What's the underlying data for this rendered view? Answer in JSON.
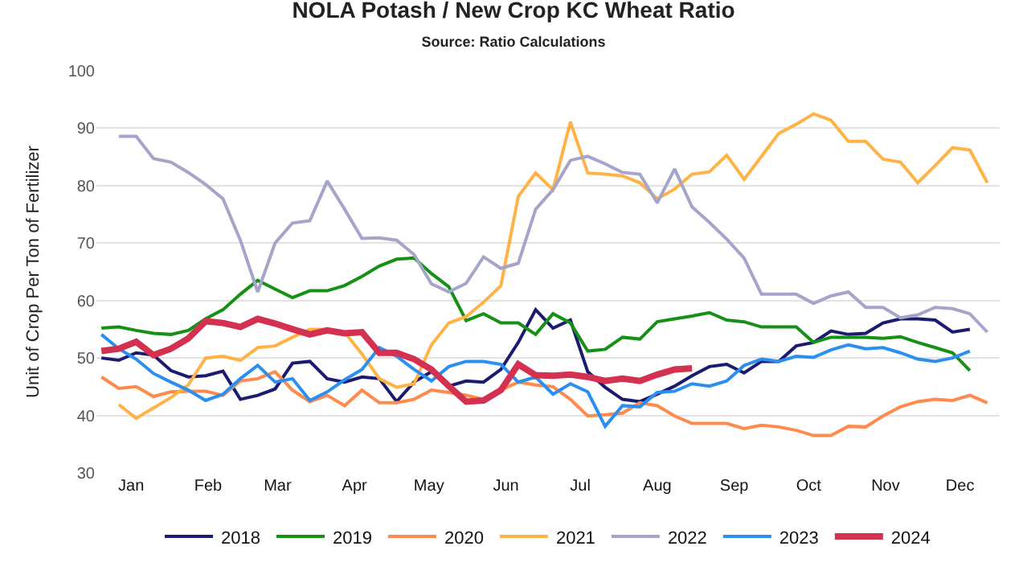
{
  "chart_data": {
    "type": "line",
    "title": "NOLA Potash / New Crop KC Wheat Ratio",
    "subtitle": "Source: Ratio Calculations",
    "ylabel": "Unit of Crop Per Ton of Fertilizer",
    "x": [
      "--01-03",
      "--01-10",
      "--01-17",
      "--01-24",
      "--01-31",
      "--02-07",
      "--02-14",
      "--02-21",
      "--02-28",
      "--03-07",
      "--03-14",
      "--03-21",
      "--03-28",
      "--04-04",
      "--04-11",
      "--04-18",
      "--04-25",
      "--05-02",
      "--05-09",
      "--05-16",
      "--05-23",
      "--05-30",
      "--06-06",
      "--06-13",
      "--06-20",
      "--06-27",
      "--07-04",
      "--07-11",
      "--07-18",
      "--07-25",
      "--08-01",
      "--08-08",
      "--08-15",
      "--08-22",
      "--08-29",
      "--09-05",
      "--09-12",
      "--09-19",
      "--09-26",
      "--10-03",
      "--10-10",
      "--10-17",
      "--10-24",
      "--10-31",
      "--11-07",
      "--11-14",
      "--11-21",
      "--11-28",
      "--12-05",
      "--12-12",
      "--12-19",
      "--12-26"
    ],
    "xlim": [
      "--01-01",
      "--12-31"
    ],
    "xticks": [
      {
        "value": "--01-15",
        "label": "Jan"
      },
      {
        "value": "--02-15",
        "label": "Feb"
      },
      {
        "value": "--03-15",
        "label": "Mar"
      },
      {
        "value": "--04-15",
        "label": "Apr"
      },
      {
        "value": "--05-15",
        "label": "May"
      },
      {
        "value": "--06-15",
        "label": "Jun"
      },
      {
        "value": "--07-15",
        "label": "Jul"
      },
      {
        "value": "--08-15",
        "label": "Aug"
      },
      {
        "value": "--09-15",
        "label": "Sep"
      },
      {
        "value": "--10-15",
        "label": "Oct"
      },
      {
        "value": "--11-15",
        "label": "Nov"
      },
      {
        "value": "--12-15",
        "label": "Dec"
      }
    ],
    "ylim": [
      30,
      100
    ],
    "yticks": [
      30,
      40,
      50,
      60,
      70,
      80,
      90,
      100
    ],
    "grid": "y",
    "legend": "bottom",
    "marker": "none",
    "line_style": "solid",
    "series": [
      {
        "name": "2018",
        "color": "#1b1b6f",
        "values": [
          50.0,
          49.6,
          50.9,
          50.5,
          47.8,
          46.7,
          46.9,
          47.7,
          42.8,
          43.5,
          44.6,
          49.1,
          49.4,
          46.4,
          45.8,
          46.7,
          46.4,
          42.4,
          45.8,
          47.6,
          45.1,
          46.0,
          45.8,
          48.0,
          52.7,
          58.4,
          55.2,
          56.6,
          47.6,
          44.9,
          42.8,
          42.4,
          43.7,
          45.1,
          46.9,
          48.5,
          48.9,
          47.4,
          49.4,
          49.4,
          52.1,
          52.7,
          54.7,
          54.1,
          54.3,
          56.1,
          56.8,
          56.8,
          56.6,
          54.5,
          55.0,
          null
        ]
      },
      {
        "name": "2019",
        "color": "#169116",
        "values": [
          55.2,
          55.4,
          54.8,
          54.3,
          54.1,
          54.8,
          56.8,
          58.4,
          61.1,
          63.5,
          62.0,
          60.5,
          61.7,
          61.7,
          62.6,
          64.2,
          66.0,
          67.2,
          67.4,
          64.7,
          62.4,
          56.5,
          57.7,
          56.1,
          56.1,
          54.1,
          57.7,
          56.1,
          51.2,
          51.5,
          53.6,
          53.3,
          56.3,
          56.8,
          57.3,
          57.9,
          56.6,
          56.3,
          55.4,
          55.4,
          55.4,
          52.7,
          53.6,
          53.6,
          53.6,
          53.4,
          53.7,
          52.7,
          51.8,
          50.9,
          47.8,
          null
        ]
      },
      {
        "name": "2020",
        "color": "#ff8a4c",
        "values": [
          46.7,
          44.7,
          45.0,
          43.3,
          44.1,
          44.2,
          44.2,
          43.5,
          46.0,
          46.4,
          47.6,
          44.4,
          42.4,
          43.5,
          41.7,
          44.4,
          42.2,
          42.2,
          42.8,
          44.4,
          44.0,
          43.5,
          42.8,
          44.4,
          45.8,
          45.3,
          45.0,
          42.8,
          39.9,
          40.1,
          40.4,
          42.2,
          41.7,
          39.9,
          38.6,
          38.6,
          38.6,
          37.7,
          38.3,
          38.0,
          37.4,
          36.5,
          36.5,
          38.1,
          38.0,
          39.9,
          41.5,
          42.4,
          42.8,
          42.6,
          43.5,
          42.2
        ]
      },
      {
        "name": "2021",
        "color": "#ffb347",
        "values": [
          null,
          41.9,
          39.5,
          41.3,
          43.1,
          45.3,
          50.0,
          50.3,
          49.6,
          51.8,
          52.1,
          53.6,
          55.0,
          55.0,
          54.5,
          50.7,
          46.4,
          44.9,
          45.5,
          52.3,
          56.1,
          57.2,
          59.7,
          62.6,
          78.1,
          82.2,
          79.3,
          91.1,
          82.2,
          82.0,
          81.7,
          80.5,
          77.7,
          79.4,
          82.0,
          82.4,
          85.3,
          81.1,
          85.1,
          89.1,
          90.7,
          92.5,
          91.4,
          87.7,
          87.7,
          84.6,
          84.1,
          80.5,
          83.5,
          86.6,
          86.2,
          80.5
        ]
      },
      {
        "name": "2022",
        "color": "#a5a5cc",
        "values": [
          null,
          88.6,
          88.6,
          84.7,
          84.1,
          82.3,
          80.2,
          77.7,
          70.5,
          61.5,
          70.0,
          73.5,
          73.9,
          80.8,
          75.9,
          70.8,
          70.9,
          70.5,
          68.0,
          62.9,
          61.5,
          63.0,
          67.6,
          65.6,
          66.5,
          75.9,
          79.3,
          84.4,
          85.1,
          83.8,
          82.3,
          82.0,
          77.0,
          82.9,
          76.3,
          73.6,
          70.7,
          67.4,
          61.1,
          61.1,
          61.1,
          59.5,
          60.8,
          61.5,
          58.8,
          58.8,
          57.0,
          57.5,
          58.8,
          58.6,
          57.7,
          54.5
        ]
      },
      {
        "name": "2023",
        "color": "#2b8ff0",
        "values": [
          54.1,
          51.6,
          49.8,
          47.3,
          45.8,
          44.4,
          42.6,
          43.7,
          46.4,
          48.7,
          45.8,
          46.4,
          42.6,
          44.1,
          46.2,
          48.0,
          51.8,
          50.3,
          48.0,
          46.0,
          48.5,
          49.4,
          49.4,
          48.9,
          45.8,
          46.7,
          43.7,
          45.5,
          44.1,
          38.1,
          41.7,
          41.5,
          44.0,
          44.2,
          45.5,
          45.1,
          46.0,
          48.7,
          49.8,
          49.4,
          50.3,
          50.1,
          51.4,
          52.3,
          51.6,
          51.8,
          50.9,
          49.8,
          49.4,
          50.0,
          51.2,
          null
        ]
      },
      {
        "name": "2024",
        "color": "#d4304f",
        "values": [
          51.2,
          51.6,
          52.8,
          50.5,
          51.6,
          53.4,
          56.4,
          56.1,
          55.4,
          56.8,
          56.0,
          55.0,
          54.1,
          54.8,
          54.3,
          54.5,
          50.9,
          50.9,
          49.8,
          48.0,
          45.1,
          42.4,
          42.6,
          44.4,
          48.9,
          47.0,
          46.9,
          47.1,
          46.7,
          46.0,
          46.4,
          46.0,
          47.1,
          48.0,
          48.2,
          null,
          null,
          null,
          null,
          null,
          null,
          null,
          null,
          null,
          null,
          null,
          null,
          null,
          null,
          null,
          null,
          null
        ]
      }
    ]
  }
}
